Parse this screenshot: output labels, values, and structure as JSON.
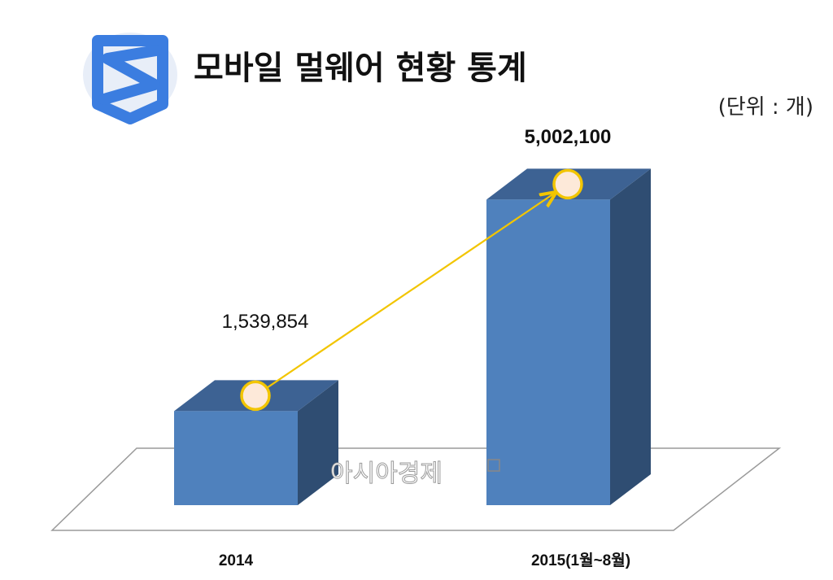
{
  "header": {
    "title": "모바일 멀웨어 현황 통계",
    "unit": "(단위 : 개)"
  },
  "logo": {
    "icon": "shield-s-logo-icon",
    "color": "#3b7de0"
  },
  "watermark": "아시아경제",
  "colors": {
    "bar_front": "#4f81bd",
    "bar_top": "#3d6293",
    "bar_side": "#2f4d72",
    "arrow": "#f2c500",
    "marker_fill": "#fde9d9",
    "marker_stroke": "#f2c500"
  },
  "chart_data": {
    "type": "bar",
    "categories": [
      "2014",
      "2015(1월~8월)"
    ],
    "values": [
      1539854,
      5002100
    ],
    "value_labels": [
      "1,539,854",
      "5,002,100"
    ],
    "ylim": [
      0,
      5500000
    ],
    "style": "3d",
    "grid": false,
    "legend": "none",
    "annotation": "arrow from 2014 bar top to 2015 bar top"
  }
}
